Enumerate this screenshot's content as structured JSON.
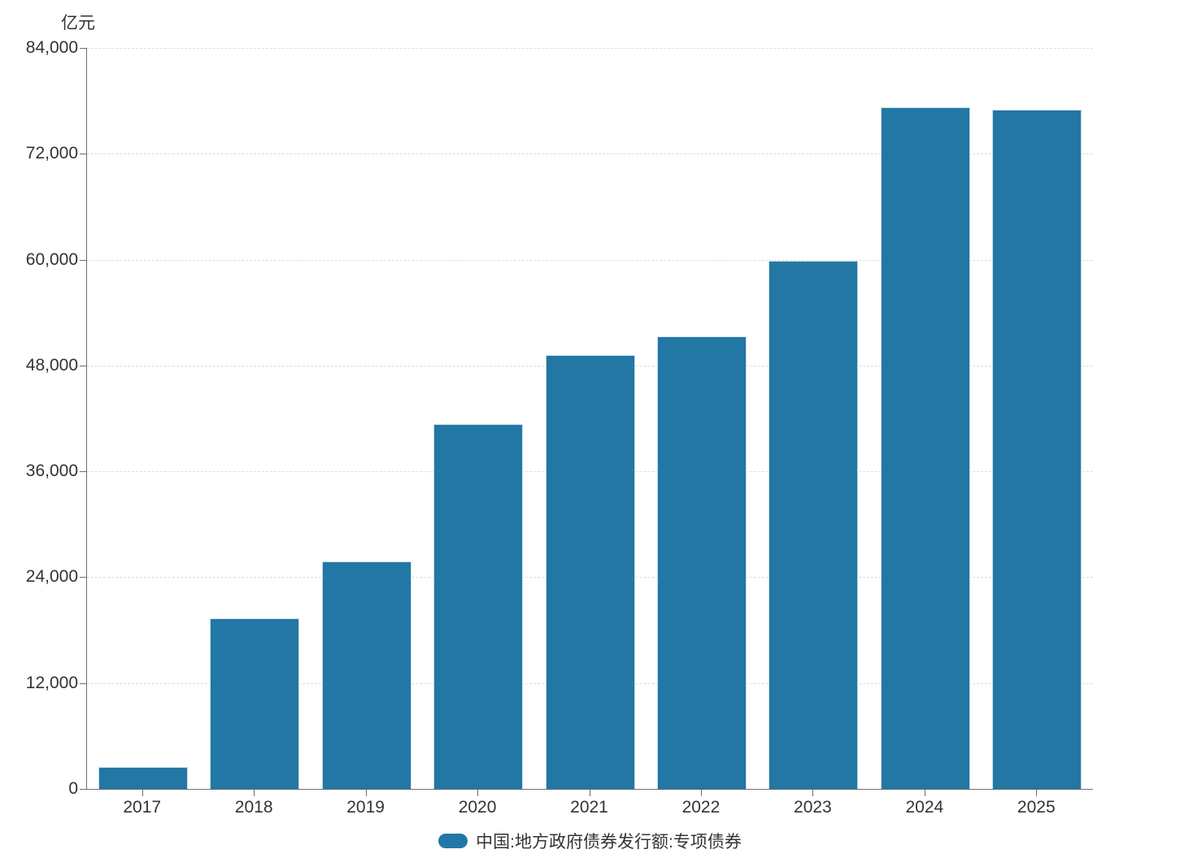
{
  "chart_data": {
    "type": "bar",
    "title": "",
    "unit_label": "亿元",
    "categories": [
      "2017",
      "2018",
      "2019",
      "2020",
      "2021",
      "2022",
      "2023",
      "2024",
      "2025"
    ],
    "series": [
      {
        "name": "中国:地方政府债券发行额:专项债券",
        "values": [
          2500,
          19300,
          25800,
          41400,
          49200,
          51300,
          59900,
          77300,
          77000
        ],
        "color": "#2277a5"
      }
    ],
    "xlabel": "",
    "ylabel": "亿元",
    "ylim": [
      0,
      84000
    ],
    "y_ticks": [
      0,
      12000,
      24000,
      36000,
      48000,
      60000,
      72000,
      84000
    ],
    "grid": "horizontal-dashed",
    "legend_position": "bottom-center"
  },
  "colors": {
    "bar_fill": "#2277a5",
    "bar_stroke": "#c9dfec",
    "axis_line": "#6e6e6e",
    "gridline": "#dcdcdc",
    "text": "#333333",
    "background": "#ffffff"
  }
}
